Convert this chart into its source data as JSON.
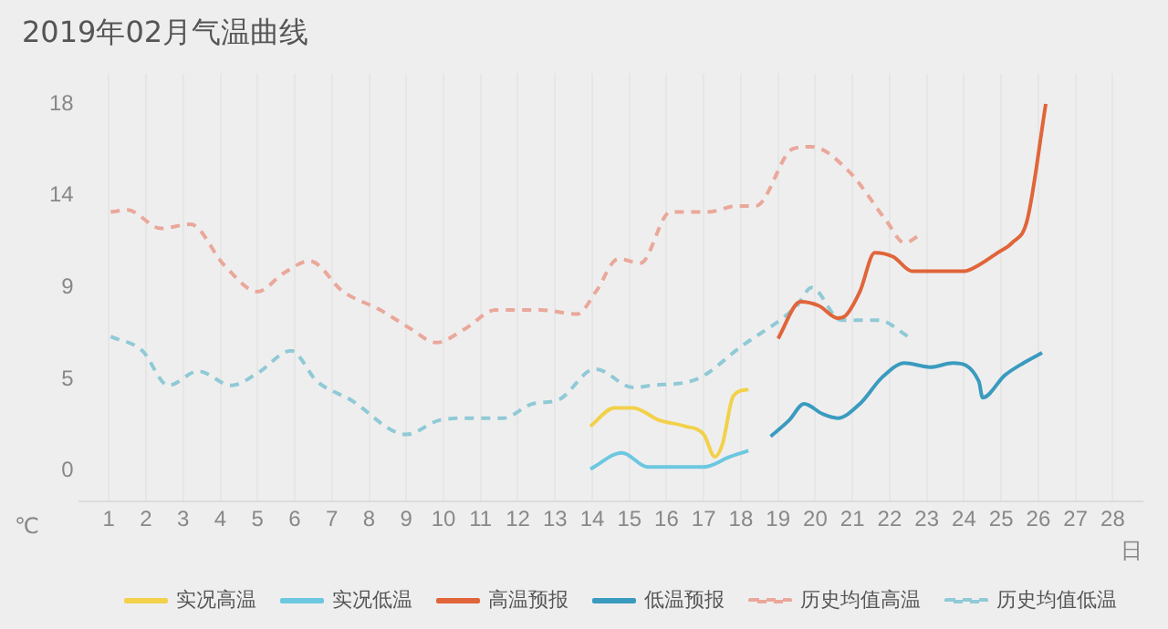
{
  "chart_data": {
    "type": "line",
    "title": "2019年02月气温曲线",
    "xlabel": "日",
    "ylabel": "℃",
    "xlim": [
      0.2,
      28.8
    ],
    "xticks": [
      1,
      2,
      3,
      4,
      5,
      6,
      7,
      8,
      9,
      10,
      11,
      12,
      13,
      14,
      15,
      16,
      17,
      18,
      19,
      20,
      21,
      22,
      23,
      24,
      25,
      26,
      27,
      28
    ],
    "ylim": [
      -1.5,
      19.5
    ],
    "yticks": [
      0,
      {
        "value": 4.5,
        "label": "5"
      },
      9,
      {
        "value": 13.5,
        "label": "14"
      },
      18
    ],
    "grid": "x",
    "legend": "bottom",
    "marker": "none",
    "series": [
      {
        "name": "实况高温",
        "color": "#f2d14b",
        "x": [
          13.95,
          14.6,
          15.1,
          15.8,
          16.5,
          17.0,
          17.3,
          17.5,
          17.8,
          18.2
        ],
        "values": [
          2.2,
          3.1,
          3.1,
          2.5,
          2.2,
          1.8,
          0.7,
          1.3,
          3.7,
          4.0
        ]
      },
      {
        "name": "实况低温",
        "color": "#6cc8e0",
        "x": [
          13.95,
          14.8,
          15.5,
          16.2,
          17.0,
          17.7,
          18.2
        ],
        "values": [
          0.1,
          0.9,
          0.2,
          0.2,
          0.2,
          0.7,
          1.0
        ]
      },
      {
        "name": "高温预报",
        "color": "#e0653a",
        "x": [
          19.0,
          19.6,
          20.1,
          20.6,
          20.8,
          21.2,
          21.6,
          22.1,
          22.6,
          23.3,
          24.0,
          24.4,
          24.9,
          25.3,
          25.7,
          26.2
        ],
        "values": [
          6.5,
          8.3,
          8.1,
          7.5,
          7.6,
          8.8,
          10.7,
          10.5,
          9.8,
          9.8,
          9.8,
          10.1,
          10.7,
          11.2,
          12.3,
          18.0
        ]
      },
      {
        "name": "低温预报",
        "color": "#3a9bbf",
        "x": [
          18.8,
          19.3,
          19.7,
          20.2,
          20.6,
          21.2,
          21.8,
          22.4,
          23.1,
          23.7,
          24.4,
          24.5,
          25.1,
          25.6,
          26.1
        ],
        "values": [
          1.7,
          2.5,
          3.3,
          2.8,
          2.6,
          3.3,
          4.6,
          5.3,
          5.1,
          5.3,
          4.4,
          3.6,
          4.7,
          5.3,
          5.8
        ]
      },
      {
        "name": "历史均值高温",
        "color": "#e9a89a",
        "line_style": "dashed",
        "x": [
          1.05,
          1.5,
          2.4,
          3.2,
          4.1,
          5.0,
          5.7,
          6.4,
          7.3,
          8.3,
          9.1,
          9.8,
          10.6,
          11.4,
          12.6,
          13.6,
          14.1,
          14.7,
          15.3,
          16.1,
          17.1,
          17.9,
          18.4,
          19.4,
          19.9,
          20.9,
          21.9,
          22.4,
          22.9
        ],
        "values": [
          12.7,
          12.8,
          11.9,
          12.1,
          10.1,
          8.8,
          9.7,
          10.3,
          8.8,
          7.9,
          7.0,
          6.3,
          7.0,
          7.9,
          7.9,
          7.7,
          8.8,
          10.4,
          10.2,
          12.7,
          12.7,
          13.0,
          13.0,
          15.8,
          15.9,
          14.7,
          12.3,
          11.2,
          11.7
        ]
      },
      {
        "name": "历史均值低温",
        "color": "#8fcad6",
        "line_style": "dashed",
        "x": [
          1.05,
          1.9,
          2.6,
          3.4,
          4.3,
          5.0,
          5.9,
          6.6,
          7.5,
          9.0,
          9.9,
          10.7,
          11.6,
          12.4,
          13.1,
          13.9,
          14.1,
          15.1,
          15.6,
          16.8,
          18.0,
          19.5,
          19.9,
          20.7,
          21.7,
          22.5
        ],
        "values": [
          6.6,
          5.9,
          4.2,
          4.9,
          4.2,
          4.8,
          5.9,
          4.4,
          3.5,
          1.8,
          2.5,
          2.6,
          2.6,
          3.3,
          3.5,
          4.9,
          5.0,
          4.1,
          4.2,
          4.5,
          6.1,
          8.1,
          9.0,
          7.4,
          7.4,
          6.6
        ]
      }
    ]
  }
}
